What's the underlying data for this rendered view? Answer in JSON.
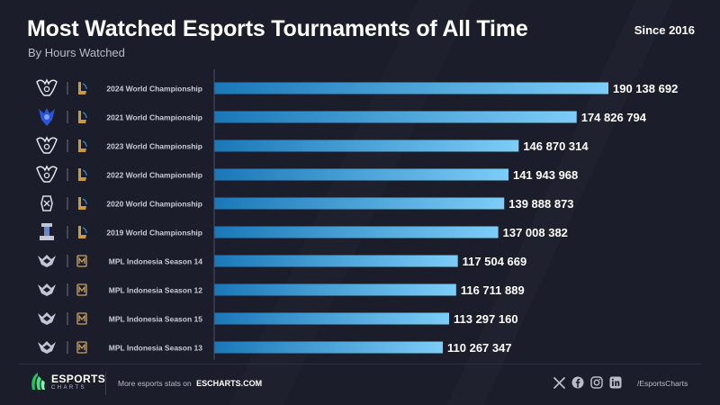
{
  "header": {
    "title": "Most Watched Esports Tournaments of All Time",
    "subtitle": "By Hours Watched",
    "since": "Since 2016"
  },
  "colors": {
    "background": "#1b1d2b",
    "bar_start": "#1a78b8",
    "bar_end": "#7ccdf7",
    "axis": "#4a4e63",
    "lol_gold": "#c89b3c",
    "mpl_badge": "#c9a36a"
  },
  "chart_data": {
    "type": "bar",
    "orientation": "horizontal",
    "categories": [
      "2024 World Championship",
      "2021 World Championship",
      "2023 World Championship",
      "2022 World Championship",
      "2020 World Championship",
      "2019 World Championship",
      "MPL Indonesia Season 14",
      "MPL Indonesia Season 12",
      "MPL Indonesia Season 15",
      "MPL Indonesia Season 13"
    ],
    "values": [
      190138692,
      174826794,
      146870314,
      141943968,
      139888873,
      137008382,
      117504669,
      116711889,
      113297160,
      110267347
    ],
    "value_labels": [
      "190 138 692",
      "174 826 794",
      "146 870 314",
      "141 943 968",
      "139 888 873",
      "137 008 382",
      "117 504 669",
      "116 711 889",
      "113 297 160",
      "110 267 347"
    ],
    "row_icons": [
      {
        "tournament_icon": "worlds-logo-icon",
        "game_icon": "league-of-legends-icon"
      },
      {
        "tournament_icon": "worlds-2021-logo-icon",
        "game_icon": "league-of-legends-icon"
      },
      {
        "tournament_icon": "worlds-logo-icon",
        "game_icon": "league-of-legends-icon"
      },
      {
        "tournament_icon": "worlds-logo-icon",
        "game_icon": "league-of-legends-icon"
      },
      {
        "tournament_icon": "worlds-2020-logo-icon",
        "game_icon": "league-of-legends-icon"
      },
      {
        "tournament_icon": "worlds-2019-logo-icon",
        "game_icon": "league-of-legends-icon"
      },
      {
        "tournament_icon": "mpl-indonesia-logo-icon",
        "game_icon": "mobile-legends-icon"
      },
      {
        "tournament_icon": "mpl-indonesia-logo-icon",
        "game_icon": "mobile-legends-icon"
      },
      {
        "tournament_icon": "mpl-indonesia-logo-icon",
        "game_icon": "mobile-legends-icon"
      },
      {
        "tournament_icon": "mpl-indonesia-logo-icon",
        "game_icon": "mobile-legends-icon"
      }
    ],
    "xlim": [
      0,
      190138692
    ],
    "grid": false,
    "legend": "none"
  },
  "footer": {
    "logo_main": "ESPORTS",
    "logo_sub": "CHARTS",
    "promo_text": "More esports stats on",
    "promo_link": "ESCHARTS.COM",
    "social_icons": [
      "x-icon",
      "facebook-icon",
      "instagram-icon",
      "linkedin-icon"
    ],
    "handle": "/EsportsCharts"
  }
}
